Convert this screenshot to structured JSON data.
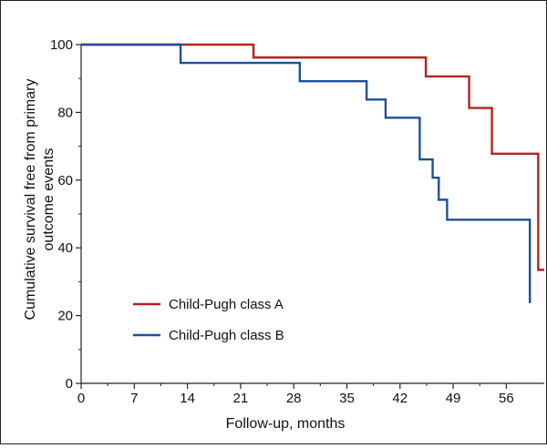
{
  "chart_data": {
    "type": "line",
    "step": true,
    "title": "",
    "xlabel": "Follow-up, months",
    "ylabel_lines": [
      "Cumulative survival free from primary",
      "outcome events"
    ],
    "xlim": [
      0,
      61
    ],
    "ylim": [
      0,
      100
    ],
    "xticks": [
      0,
      7,
      14,
      21,
      28,
      35,
      42,
      49,
      56
    ],
    "xtick_labels": [
      "0",
      "7",
      "14",
      "21",
      "28",
      "35",
      "42",
      "49",
      "56"
    ],
    "yticks": [
      0,
      20,
      40,
      60,
      80,
      100
    ],
    "ytick_labels": [
      "0",
      "20",
      "40",
      "60",
      "80",
      "100"
    ],
    "grid": false,
    "legend_position": "bottom-left",
    "series": [
      {
        "name": "Child-Pugh class A",
        "color": "#b5211f",
        "x": [
          0,
          22.7,
          45.4,
          51.1,
          54.1,
          60.2,
          61
        ],
        "y": [
          100,
          96.2,
          90.6,
          81.3,
          67.8,
          33.5,
          33.5
        ]
      },
      {
        "name": "Child-Pugh class B",
        "color": "#1f4f99",
        "x": [
          0,
          13.1,
          28.8,
          37.6,
          40.1,
          44.6,
          46.3,
          47.1,
          48.2,
          59.1
        ],
        "y": [
          100,
          94.6,
          89.2,
          83.8,
          78.4,
          66.1,
          60.7,
          54.2,
          48.3,
          23.7
        ]
      }
    ]
  }
}
